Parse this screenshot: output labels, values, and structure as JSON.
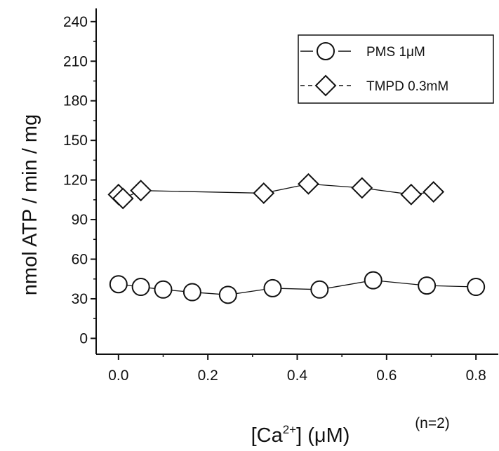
{
  "chart_data": {
    "type": "scatter",
    "xlabel": {
      "base": "[Ca",
      "sup": "2+",
      "rest": "] (μM)"
    },
    "ylabel": "nmol ATP / min / mg",
    "xlim": [
      -0.05,
      0.85
    ],
    "ylim": [
      -12,
      250
    ],
    "x_ticks": [
      0.0,
      0.2,
      0.4,
      0.6,
      0.8
    ],
    "x_tick_labels": [
      "0.0",
      "0.2",
      "0.4",
      "0.6",
      "0.8"
    ],
    "y_ticks": [
      0,
      30,
      60,
      90,
      120,
      150,
      180,
      210,
      240
    ],
    "y_tick_labels": [
      "0",
      "30",
      "60",
      "90",
      "120",
      "150",
      "180",
      "210",
      "240"
    ],
    "grid": false,
    "legend_position": "top-right",
    "annotation": "(n=2)",
    "series": [
      {
        "name": "PMS  1μM",
        "marker": "circle",
        "x": [
          0.0,
          0.05,
          0.1,
          0.165,
          0.245,
          0.345,
          0.45,
          0.57,
          0.69,
          0.8
        ],
        "y": [
          41,
          39,
          37,
          35,
          33,
          38,
          37,
          44,
          40,
          39
        ]
      },
      {
        "name": "TMPD 0.3mM",
        "marker": "diamond",
        "x": [
          0.0,
          0.01,
          0.05,
          0.325,
          0.425,
          0.545,
          0.655,
          0.705
        ],
        "y": [
          109,
          106,
          112,
          110,
          117,
          114,
          109,
          111
        ]
      }
    ]
  },
  "colors": {
    "ink": "#111111",
    "background": "#ffffff"
  }
}
